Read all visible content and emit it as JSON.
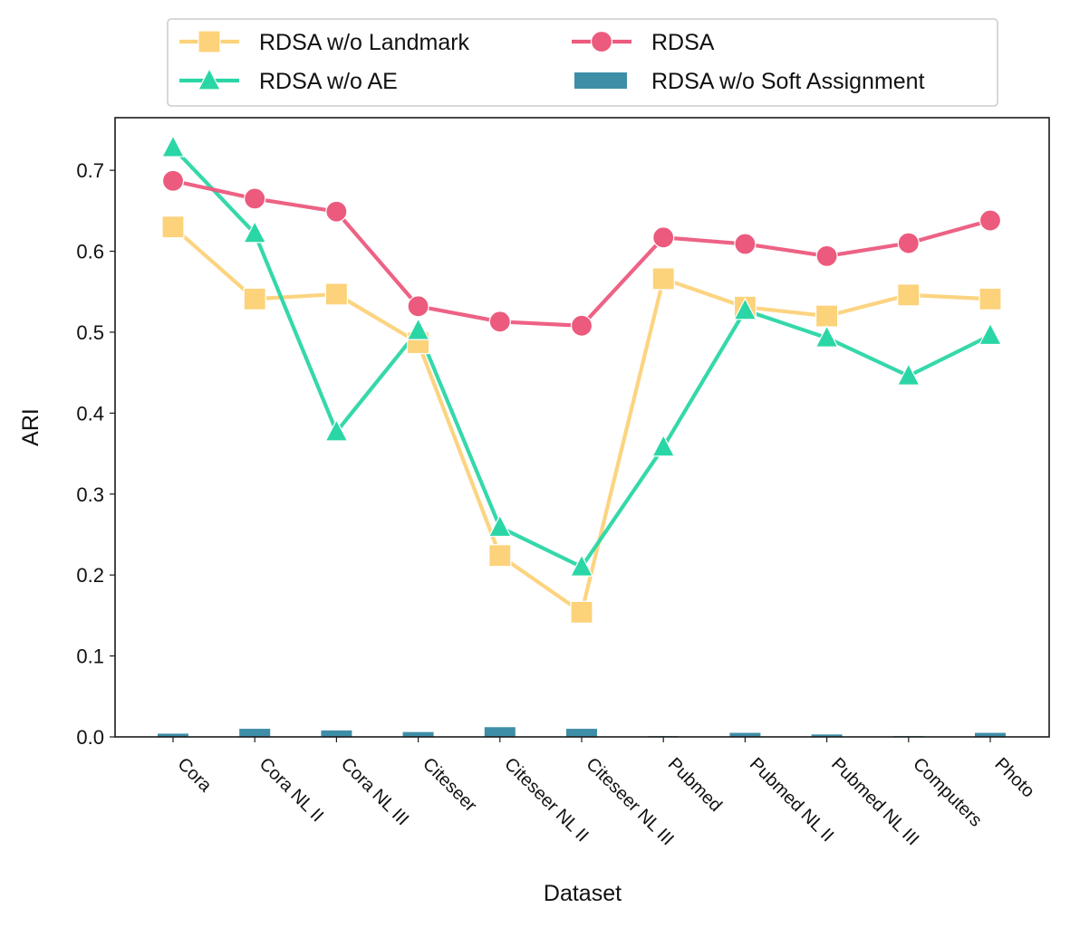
{
  "chart_data": {
    "type": "line",
    "title": "",
    "xlabel": "Dataset",
    "ylabel": "ARI",
    "ylim": [
      0.0,
      0.765
    ],
    "yticks": [
      0.0,
      0.1,
      0.2,
      0.3,
      0.4,
      0.5,
      0.6,
      0.7
    ],
    "ytick_labels": [
      "0.0",
      "0.1",
      "0.2",
      "0.3",
      "0.4",
      "0.5",
      "0.6",
      "0.7"
    ],
    "grid": false,
    "legend_position": "top-center",
    "categories": [
      "Cora",
      "Cora NL II",
      "Cora NL III",
      "Citeseer",
      "Citeseer NL II",
      "Citeseer NL III",
      "Pubmed",
      "Pubmed NL II",
      "Pubmed NL III",
      "Computers",
      "Photo"
    ],
    "series": [
      {
        "name": "RDSA w/o Landmark",
        "kind": "line",
        "marker": "square",
        "color": "#fcd27a",
        "values": [
          0.63,
          0.541,
          0.547,
          0.487,
          0.224,
          0.154,
          0.566,
          0.531,
          0.52,
          0.546,
          0.541
        ]
      },
      {
        "name": "RDSA w/o AE",
        "kind": "line",
        "marker": "triangle",
        "color": "#2ad6a5",
        "values": [
          0.728,
          0.622,
          0.377,
          0.502,
          0.259,
          0.21,
          0.358,
          0.527,
          0.493,
          0.446,
          0.496
        ]
      },
      {
        "name": "RDSA",
        "kind": "line",
        "marker": "circle",
        "color": "#ec5a7e",
        "values": [
          0.687,
          0.665,
          0.649,
          0.532,
          0.513,
          0.508,
          0.617,
          0.609,
          0.594,
          0.61,
          0.638
        ]
      },
      {
        "name": "RDSA w/o Soft Assignment",
        "kind": "bar",
        "color": "#3f8ea8",
        "values": [
          0.004,
          0.01,
          0.008,
          0.006,
          0.012,
          0.01,
          0.001,
          0.005,
          0.003,
          0.001,
          0.005
        ]
      }
    ]
  }
}
